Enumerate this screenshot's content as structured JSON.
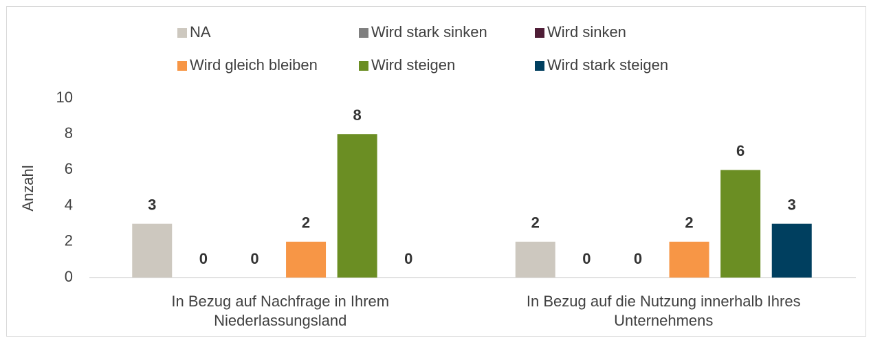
{
  "chart_data": {
    "type": "bar",
    "categories": [
      [
        "In Bezug auf Nachfrage in Ihrem",
        "Niederlassungsland"
      ],
      [
        "In Bezug auf die Nutzung innerhalb Ihres",
        "Unternehmens"
      ]
    ],
    "series": [
      {
        "name": "NA",
        "color": "#cdc8bf",
        "values": [
          3,
          2
        ]
      },
      {
        "name": "Wird stark sinken",
        "color": "#7f7f7f",
        "values": [
          0,
          0
        ]
      },
      {
        "name": "Wird sinken",
        "color": "#4e1d36",
        "values": [
          0,
          0
        ]
      },
      {
        "name": "Wird gleich bleiben",
        "color": "#f79646",
        "values": [
          2,
          2
        ]
      },
      {
        "name": "Wird steigen",
        "color": "#6b8e23",
        "values": [
          8,
          6
        ]
      },
      {
        "name": "Wird stark steigen",
        "color": "#003f5f",
        "values": [
          0,
          3
        ]
      }
    ],
    "y_label": "Anzahl",
    "ylim": [
      0,
      10
    ],
    "yticks": [
      0,
      2,
      4,
      6,
      8,
      10
    ],
    "grid": false,
    "data_labels": true,
    "legend": "top"
  }
}
